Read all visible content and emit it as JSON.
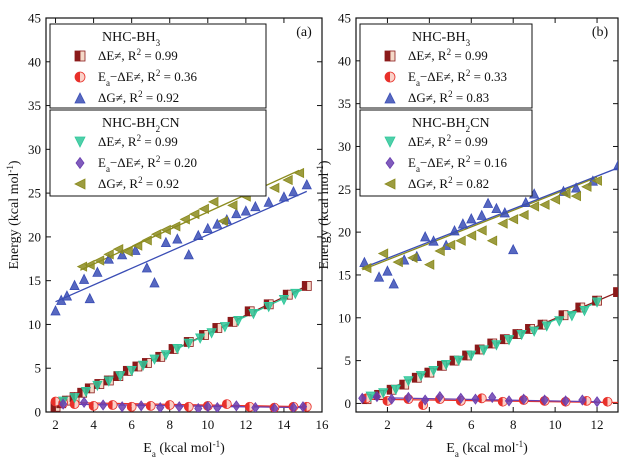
{
  "chart_data": [
    {
      "type": "scatter",
      "panel_label": "(a)",
      "xlabel": "E_a (kcal mol^-1)",
      "ylabel": "Energy (kcal mol^-1)",
      "xlim": [
        1.5,
        16
      ],
      "ylim": [
        0,
        45
      ],
      "xticks": [
        "2",
        "4",
        "6",
        "8",
        "10",
        "12",
        "14",
        "16"
      ],
      "yticks": [
        "0",
        "5",
        "10",
        "15",
        "20",
        "25",
        "30",
        "35",
        "40",
        "45"
      ],
      "legend_groups": [
        {
          "title": "NHC-BH3",
          "entries": [
            {
              "label": "ΔE≠, R2 = 0.99",
              "series": "a_bh3_de"
            },
            {
              "label": "Ea−ΔE≠, R2 = 0.36",
              "series": "a_bh3_diff"
            },
            {
              "label": "ΔG≠, R2 = 0.92",
              "series": "a_bh3_dg"
            }
          ]
        },
        {
          "title": "NHC-BH2CN",
          "entries": [
            {
              "label": "ΔE≠, R2 = 0.99",
              "series": "a_cn_de"
            },
            {
              "label": "Ea−ΔE≠, R2 = 0.20",
              "series": "a_cn_diff"
            },
            {
              "label": "ΔG≠, R2 = 0.92",
              "series": "a_cn_dg"
            }
          ]
        }
      ],
      "series": [
        {
          "key": "a_bh3_de",
          "marker": "square",
          "color": "#8b1a1a",
          "fit": [
            [
              2.0,
              0.6
            ],
            [
              15.2,
              14.4
            ]
          ],
          "x": [
            2.0,
            2.3,
            2.6,
            3.0,
            3.4,
            3.8,
            4.3,
            4.8,
            5.3,
            5.8,
            6.3,
            6.8,
            7.5,
            8.2,
            9.0,
            9.8,
            10.5,
            11.3,
            12.2,
            13.2,
            14.2,
            15.2
          ],
          "y": [
            0.6,
            1.0,
            1.3,
            1.7,
            2.2,
            2.7,
            3.2,
            3.6,
            4.1,
            4.7,
            5.2,
            5.6,
            6.3,
            7.2,
            8.0,
            8.8,
            9.6,
            10.3,
            11.5,
            12.3,
            13.4,
            14.4
          ]
        },
        {
          "key": "a_bh3_diff",
          "marker": "circle",
          "color": "#e8302a",
          "fit": [
            [
              2.0,
              1.1
            ],
            [
              15.2,
              0.6
            ]
          ],
          "x": [
            2.0,
            2.4,
            3.0,
            4.0,
            5.0,
            6.0,
            7.0,
            8.0,
            9.0,
            10.0,
            11.0,
            12.2,
            13.5,
            14.5,
            15.2
          ],
          "y": [
            1.2,
            1.0,
            0.9,
            0.7,
            0.8,
            0.6,
            0.7,
            0.8,
            0.6,
            0.7,
            0.9,
            0.6,
            0.5,
            0.6,
            0.6
          ]
        },
        {
          "key": "a_bh3_dg",
          "marker": "triangle-up",
          "color": "#3a4db5",
          "fit": [
            [
              2.0,
              12.6
            ],
            [
              15.2,
              25.2
            ]
          ],
          "x": [
            2.0,
            2.3,
            2.6,
            3.0,
            3.5,
            3.8,
            4.2,
            4.8,
            5.5,
            6.2,
            6.8,
            7.2,
            7.8,
            8.4,
            9.0,
            9.5,
            10.0,
            10.5,
            11.0,
            11.5,
            12.0,
            12.5,
            13.2,
            14.0,
            14.5,
            15.2
          ],
          "y": [
            11.6,
            12.8,
            13.3,
            14.5,
            15.2,
            13.0,
            16.0,
            17.5,
            18.0,
            18.5,
            16.5,
            14.8,
            19.4,
            19.8,
            18.0,
            20.2,
            21.0,
            21.5,
            22.0,
            22.7,
            23.0,
            23.5,
            24.0,
            24.6,
            25.2,
            26.0
          ]
        },
        {
          "key": "a_cn_de",
          "marker": "triangle-down",
          "color": "#2fc79a",
          "fit": [
            [
              2.0,
              0.7
            ],
            [
              15.0,
              14.0
            ]
          ],
          "x": [
            2.4,
            3.0,
            3.6,
            4.2,
            4.8,
            5.4,
            6.0,
            6.6,
            7.2,
            7.8,
            8.4,
            9.0,
            9.6,
            10.2,
            10.9,
            11.6,
            12.4,
            13.2,
            14.0,
            14.6
          ],
          "y": [
            1.2,
            1.6,
            2.3,
            3.0,
            3.5,
            4.1,
            4.7,
            5.3,
            6.0,
            6.5,
            7.2,
            7.8,
            8.4,
            9.0,
            9.7,
            10.4,
            11.2,
            12.0,
            12.8,
            13.5
          ]
        },
        {
          "key": "a_cn_diff",
          "marker": "diamond",
          "color": "#6a3fb0",
          "fit": [
            [
              2.4,
              0.9
            ],
            [
              15.0,
              0.5
            ]
          ],
          "x": [
            2.4,
            3.5,
            4.5,
            5.5,
            6.5,
            7.5,
            8.5,
            9.5,
            10.0,
            10.5,
            11.5,
            12.5,
            13.5,
            14.5,
            15.0
          ],
          "y": [
            0.9,
            1.1,
            0.8,
            0.6,
            0.7,
            0.5,
            0.6,
            0.4,
            0.6,
            0.5,
            0.7,
            0.5,
            0.4,
            0.5,
            0.6
          ]
        },
        {
          "key": "a_cn_dg",
          "marker": "triangle-left",
          "color": "#8b8b1e",
          "fit": [
            [
              3.3,
              16.2
            ],
            [
              14.8,
              27.6
            ]
          ],
          "x": [
            3.4,
            3.8,
            4.3,
            4.8,
            5.3,
            5.8,
            6.3,
            6.8,
            7.3,
            7.8,
            8.3,
            8.8,
            9.3,
            9.8,
            10.3,
            10.8,
            11.3,
            12.0,
            12.8,
            13.5,
            14.2,
            14.8
          ],
          "y": [
            16.6,
            16.8,
            17.3,
            18.0,
            18.6,
            18.3,
            19.0,
            19.6,
            20.3,
            20.8,
            21.2,
            22.0,
            22.6,
            23.2,
            24.0,
            21.8,
            23.6,
            24.6,
            25.2,
            25.6,
            26.5,
            27.3
          ]
        }
      ]
    },
    {
      "type": "scatter",
      "panel_label": "(b)",
      "xlabel": "E_a (kcal mol^-1)",
      "ylabel": "Energy (kcal mol^-1)",
      "xlim": [
        0.5,
        13
      ],
      "ylim": [
        -1,
        45
      ],
      "xticks": [
        "2",
        "4",
        "6",
        "8",
        "10",
        "12"
      ],
      "yticks": [
        "0",
        "5",
        "10",
        "15",
        "20",
        "25",
        "30",
        "35",
        "40",
        "45"
      ],
      "legend_groups": [
        {
          "title": "NHC-BH3",
          "entries": [
            {
              "label": "ΔE≠, R2 = 0.99",
              "series": "b_bh3_de"
            },
            {
              "label": "Ea−ΔE≠, R2 = 0.33",
              "series": "b_bh3_diff"
            },
            {
              "label": "ΔG≠, R2 = 0.83",
              "series": "b_bh3_dg"
            }
          ]
        },
        {
          "title": "NHC-BH2CN",
          "entries": [
            {
              "label": "ΔE≠, R2 = 0.99",
              "series": "b_cn_de"
            },
            {
              "label": "Ea−ΔE≠, R2 = 0.16",
              "series": "b_cn_diff"
            },
            {
              "label": "ΔG≠, R2 = 0.82",
              "series": "b_cn_dg"
            }
          ]
        }
      ],
      "series": [
        {
          "key": "b_bh3_de",
          "marker": "square",
          "color": "#8b1a1a",
          "fit": [
            [
              0.8,
              0.4
            ],
            [
              13.0,
              13.0
            ]
          ],
          "x": [
            1.0,
            1.6,
            2.2,
            2.8,
            3.4,
            4.0,
            4.6,
            5.2,
            5.8,
            6.4,
            7.0,
            7.6,
            8.2,
            8.8,
            9.4,
            10.4,
            11.2,
            12.0,
            13.0
          ],
          "y": [
            0.5,
            1.0,
            1.6,
            2.2,
            3.0,
            3.6,
            4.4,
            5.0,
            5.6,
            6.3,
            7.0,
            7.5,
            8.1,
            8.7,
            9.2,
            10.3,
            11.2,
            12.0,
            13.0
          ]
        },
        {
          "key": "b_bh3_diff",
          "marker": "circle",
          "color": "#e8302a",
          "fit": [
            [
              0.8,
              0.5
            ],
            [
              13.0,
              0.1
            ]
          ],
          "x": [
            1.0,
            2.0,
            3.0,
            3.7,
            4.5,
            5.5,
            6.5,
            7.5,
            8.5,
            9.5,
            10.5,
            11.5,
            12.5
          ],
          "y": [
            0.6,
            0.3,
            0.5,
            -0.2,
            0.5,
            0.3,
            0.6,
            0.2,
            0.4,
            0.3,
            0.2,
            0.3,
            0.2
          ]
        },
        {
          "key": "b_bh3_dg",
          "marker": "triangle-up",
          "color": "#3a4db5",
          "fit": [
            [
              0.8,
              15.8
            ],
            [
              13.0,
              27.5
            ]
          ],
          "x": [
            0.9,
            1.6,
            2.0,
            2.3,
            2.8,
            3.4,
            3.8,
            4.2,
            4.8,
            5.2,
            5.6,
            6.0,
            6.5,
            6.8,
            7.2,
            7.6,
            8.0,
            8.6,
            9.0,
            10.4,
            11.0,
            11.8,
            13.0
          ],
          "y": [
            16.5,
            14.8,
            15.5,
            14.0,
            16.8,
            17.2,
            19.5,
            19.0,
            18.5,
            20.2,
            21.0,
            21.6,
            22.0,
            23.4,
            22.8,
            22.3,
            18.0,
            23.5,
            24.5,
            24.8,
            25.2,
            26.0,
            27.8
          ]
        },
        {
          "key": "b_cn_de",
          "marker": "triangle-down",
          "color": "#2fc79a",
          "fit": [
            [
              1.0,
              0.6
            ],
            [
              12.0,
              11.8
            ]
          ],
          "x": [
            1.2,
            1.8,
            2.4,
            3.0,
            3.6,
            4.2,
            4.8,
            5.4,
            6.0,
            6.6,
            7.2,
            7.8,
            8.4,
            9.0,
            9.6,
            10.2,
            10.8,
            11.4,
            12.0
          ],
          "y": [
            0.8,
            1.2,
            1.6,
            2.6,
            3.2,
            3.8,
            4.5,
            5.0,
            5.6,
            6.2,
            6.8,
            7.4,
            8.0,
            8.4,
            9.0,
            9.6,
            10.2,
            10.8,
            11.8
          ]
        },
        {
          "key": "b_cn_diff",
          "marker": "diamond",
          "color": "#6a3fb0",
          "fit": [
            [
              0.8,
              0.7
            ],
            [
              12.0,
              0.2
            ]
          ],
          "x": [
            0.8,
            1.5,
            2.2,
            3.0,
            3.8,
            4.5,
            5.5,
            6.2,
            7.0,
            7.8,
            8.5,
            9.5,
            10.5,
            11.3,
            12.0
          ],
          "y": [
            0.6,
            0.8,
            0.5,
            0.7,
            0.4,
            0.8,
            0.6,
            0.5,
            0.7,
            0.3,
            0.5,
            0.4,
            0.3,
            0.4,
            0.2
          ]
        },
        {
          "key": "b_cn_dg",
          "marker": "triangle-left",
          "color": "#8b8b1e",
          "fit": [
            [
              0.8,
              15.6
            ],
            [
              12.0,
              26.4
            ]
          ],
          "x": [
            1.0,
            1.8,
            2.5,
            3.2,
            4.0,
            4.5,
            5.0,
            5.5,
            6.0,
            6.5,
            7.0,
            7.5,
            8.0,
            8.5,
            9.0,
            9.5,
            10.0,
            10.5,
            11.0,
            11.5,
            12.0
          ],
          "y": [
            15.8,
            17.5,
            16.5,
            17.0,
            16.2,
            17.8,
            18.5,
            19.0,
            19.6,
            20.2,
            19.0,
            21.0,
            21.5,
            22.0,
            23.0,
            23.2,
            23.8,
            24.5,
            24.2,
            25.3,
            26.0
          ]
        }
      ]
    }
  ]
}
